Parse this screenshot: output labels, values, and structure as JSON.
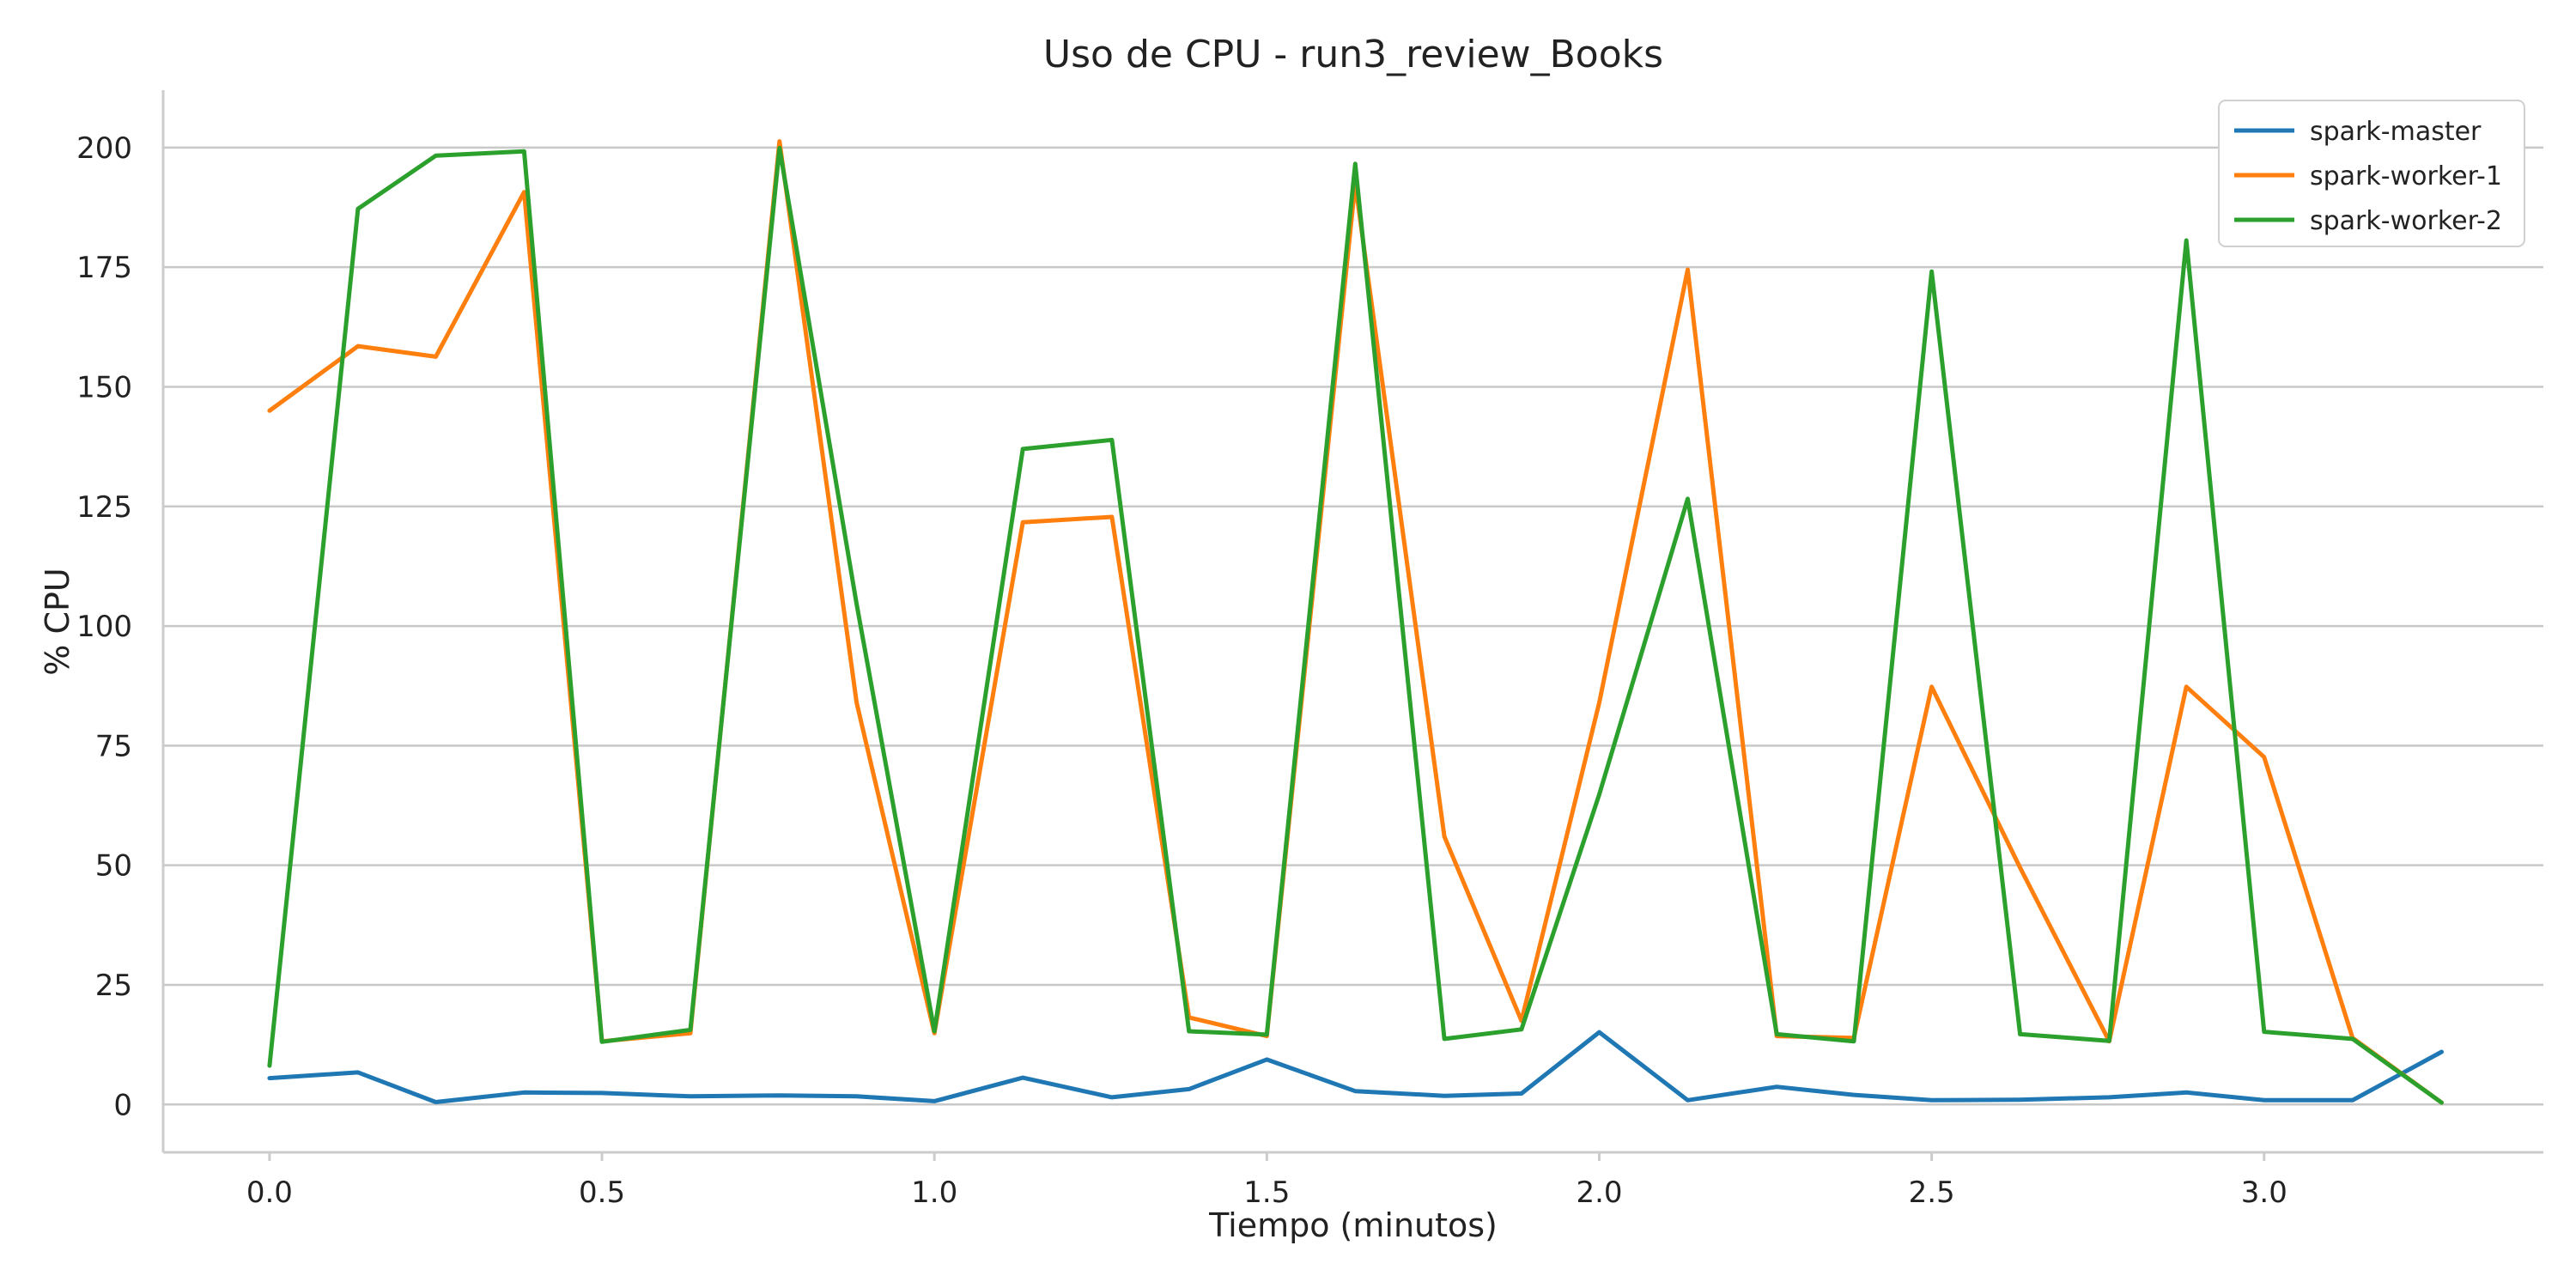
{
  "chart_data": {
    "type": "line",
    "title": "Uso de CPU - run3_review_Books",
    "xlabel": "Tiempo (minutos)",
    "ylabel": "% CPU",
    "xlim": [
      -0.16,
      3.42
    ],
    "ylim": [
      -10,
      212
    ],
    "xticks": [
      0.0,
      0.5,
      1.0,
      1.5,
      2.0,
      2.5,
      3.0
    ],
    "xtick_labels": [
      "0.0",
      "0.5",
      "1.0",
      "1.5",
      "2.0",
      "2.5",
      "3.0"
    ],
    "yticks": [
      0,
      25,
      50,
      75,
      100,
      125,
      150,
      175,
      200
    ],
    "ytick_labels": [
      "0",
      "25",
      "50",
      "75",
      "100",
      "125",
      "150",
      "175",
      "200"
    ],
    "grid": "horizontal",
    "legend_position": "top-right",
    "x": [
      0.0,
      0.133,
      0.25,
      0.383,
      0.5,
      0.633,
      0.767,
      0.883,
      1.0,
      1.133,
      1.267,
      1.383,
      1.5,
      1.633,
      1.767,
      1.883,
      2.0,
      2.133,
      2.267,
      2.383,
      2.5,
      2.633,
      2.767,
      2.883,
      3.0,
      3.133,
      3.267
    ],
    "series": [
      {
        "name": "spark-master",
        "color": "#1f77b4",
        "values": [
          5.5,
          6.7,
          0.5,
          2.5,
          2.4,
          1.7,
          1.9,
          1.7,
          0.7,
          5.6,
          1.5,
          3.2,
          9.4,
          2.8,
          1.8,
          2.3,
          15.1,
          0.9,
          3.7,
          2.0,
          0.9,
          1.0,
          1.5,
          2.5,
          0.9,
          0.9,
          11.0
        ]
      },
      {
        "name": "spark-worker-1",
        "color": "#ff7f0e",
        "values": [
          145.0,
          158.5,
          156.3,
          190.7,
          13.2,
          14.9,
          201.3,
          84.0,
          14.9,
          121.7,
          122.8,
          18.2,
          14.3,
          192.5,
          56.0,
          17.5,
          84.0,
          174.5,
          14.3,
          13.9,
          87.3,
          49.5,
          13.2,
          87.3,
          72.6,
          13.9,
          0.4
        ]
      },
      {
        "name": "spark-worker-2",
        "color": "#2ca02c",
        "values": [
          8.1,
          187.2,
          198.3,
          199.2,
          13.1,
          15.6,
          199.9,
          104.6,
          15.3,
          137.0,
          138.9,
          15.3,
          14.6,
          196.6,
          13.7,
          15.7,
          64.8,
          126.6,
          14.7,
          13.2,
          174.1,
          14.7,
          13.3,
          180.6,
          15.2,
          13.7,
          0.4
        ]
      }
    ]
  }
}
